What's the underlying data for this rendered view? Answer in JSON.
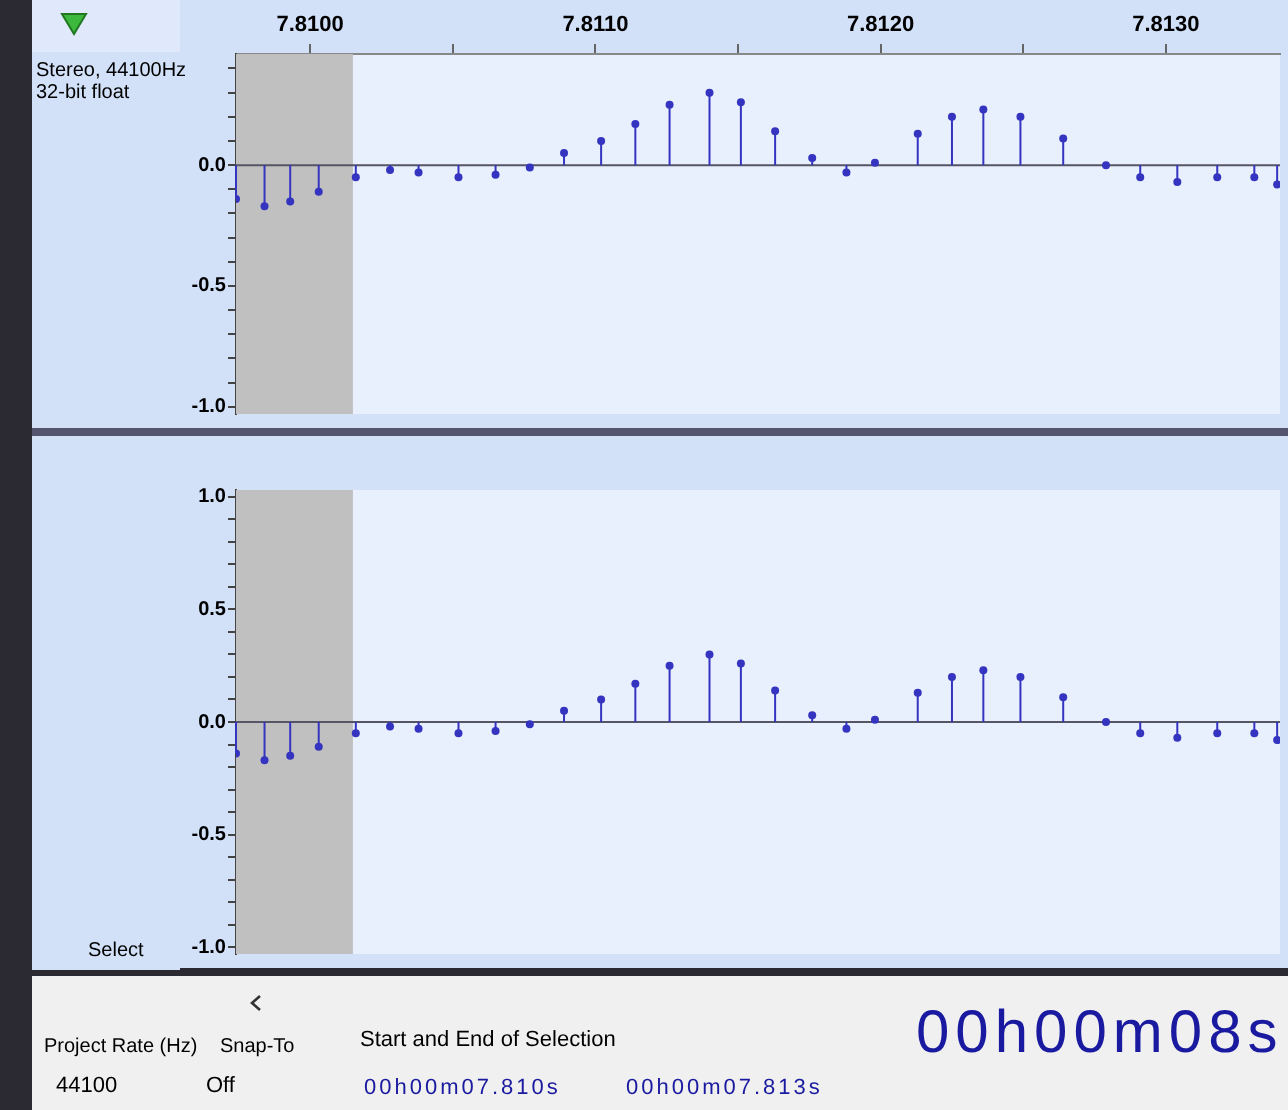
{
  "chart_data": [
    {
      "type": "lollipop",
      "color": "#3434c0",
      "marker": "circle",
      "x": [
        7.80974,
        7.80984,
        7.80993,
        7.81003,
        7.81016,
        7.81028,
        7.81038,
        7.81052,
        7.81065,
        7.81077,
        7.81089,
        7.81102,
        7.81114,
        7.81126,
        7.8114,
        7.81151,
        7.81163,
        7.81176,
        7.81188,
        7.81198,
        7.81213,
        7.81225,
        7.81236,
        7.81249,
        7.81264,
        7.81279,
        7.81291,
        7.81304,
        7.81318,
        7.81331,
        7.81339
      ],
      "values": [
        -0.14,
        -0.17,
        -0.15,
        -0.11,
        -0.05,
        -0.02,
        -0.03,
        -0.05,
        -0.04,
        -0.01,
        0.05,
        0.1,
        0.17,
        0.25,
        0.3,
        0.26,
        0.14,
        0.03,
        -0.03,
        0.01,
        0.13,
        0.2,
        0.23,
        0.2,
        0.11,
        0.0,
        -0.05,
        -0.07,
        -0.05,
        -0.05,
        -0.08
      ],
      "xlim": [
        7.80974,
        7.8134
      ],
      "ylim": [
        -1.03,
        0.46
      ],
      "xticks": [
        {
          "value": 7.81,
          "label": "7.8100"
        },
        {
          "value": 7.8105,
          "label": null
        },
        {
          "value": 7.811,
          "label": "7.8110"
        },
        {
          "value": 7.8115,
          "label": null
        },
        {
          "value": 7.812,
          "label": "7.8120"
        },
        {
          "value": 7.8125,
          "label": null
        },
        {
          "value": 7.813,
          "label": "7.8130"
        }
      ],
      "yticks": [
        {
          "value": 0.4,
          "label": null
        },
        {
          "value": 0.3,
          "label": null
        },
        {
          "value": 0.2,
          "label": null
        },
        {
          "value": 0.1,
          "label": null
        },
        {
          "value": 0,
          "label": "0.0"
        },
        {
          "value": -0.1,
          "label": null
        },
        {
          "value": -0.2,
          "label": null
        },
        {
          "value": -0.3,
          "label": null
        },
        {
          "value": -0.4,
          "label": null
        },
        {
          "value": -0.5,
          "label": "-0.5"
        },
        {
          "value": -0.6,
          "label": null
        },
        {
          "value": -0.7,
          "label": null
        },
        {
          "value": -0.8,
          "label": null
        },
        {
          "value": -0.9,
          "label": null
        },
        {
          "value": -1,
          "label": "-1.0"
        }
      ],
      "bands": [
        {
          "axis": "x",
          "from": 7.80974,
          "to": 7.81015,
          "color": "#c0c0c0"
        }
      ],
      "annotations": [
        "Stereo, 44100Hz",
        "32-bit float",
        "Select",
        "Project Rate (Hz)",
        "Snap-To",
        "Start and End of Selection",
        "44100",
        "Off",
        "00h00m07.810s",
        "00h00m07.813s",
        "00h00m08s"
      ]
    },
    {
      "type": "lollipop",
      "color": "#3434c0",
      "marker": "circle",
      "tick_labels": "y",
      "x": [
        7.80974,
        7.80984,
        7.80993,
        7.81003,
        7.81016,
        7.81028,
        7.81038,
        7.81052,
        7.81065,
        7.81077,
        7.81089,
        7.81102,
        7.81114,
        7.81126,
        7.8114,
        7.81151,
        7.81163,
        7.81176,
        7.81188,
        7.81198,
        7.81213,
        7.81225,
        7.81236,
        7.81249,
        7.81264,
        7.81279,
        7.81291,
        7.81304,
        7.81318,
        7.81331,
        7.81339
      ],
      "values": [
        -0.14,
        -0.17,
        -0.15,
        -0.11,
        -0.05,
        -0.02,
        -0.03,
        -0.05,
        -0.04,
        -0.01,
        0.05,
        0.1,
        0.17,
        0.25,
        0.3,
        0.26,
        0.14,
        0.03,
        -0.03,
        0.01,
        0.13,
        0.2,
        0.23,
        0.2,
        0.11,
        0.0,
        -0.05,
        -0.07,
        -0.05,
        -0.05,
        -0.08
      ],
      "xlim": [
        7.80974,
        7.8134
      ],
      "ylim": [
        -1.03,
        1.03
      ],
      "yticks": [
        {
          "value": 1,
          "label": "1.0"
        },
        {
          "value": 0.9,
          "label": null
        },
        {
          "value": 0.8,
          "label": null
        },
        {
          "value": 0.7,
          "label": null
        },
        {
          "value": 0.6,
          "label": null
        },
        {
          "value": 0.5,
          "label": "0.5"
        },
        {
          "value": 0.4,
          "label": null
        },
        {
          "value": 0.3,
          "label": null
        },
        {
          "value": 0.2,
          "label": null
        },
        {
          "value": 0.1,
          "label": null
        },
        {
          "value": 0,
          "label": "0.0"
        },
        {
          "value": -0.1,
          "label": null
        },
        {
          "value": -0.2,
          "label": null
        },
        {
          "value": -0.3,
          "label": null
        },
        {
          "value": -0.4,
          "label": null
        },
        {
          "value": -0.5,
          "label": "-0.5"
        },
        {
          "value": -0.6,
          "label": null
        },
        {
          "value": -0.7,
          "label": null
        },
        {
          "value": -0.8,
          "label": null
        },
        {
          "value": -0.9,
          "label": null
        },
        {
          "value": -1,
          "label": "-1.0"
        }
      ],
      "bands": [
        {
          "axis": "x",
          "from": 7.80974,
          "to": 7.81015,
          "color": "#c0c0c0"
        }
      ]
    }
  ]
}
